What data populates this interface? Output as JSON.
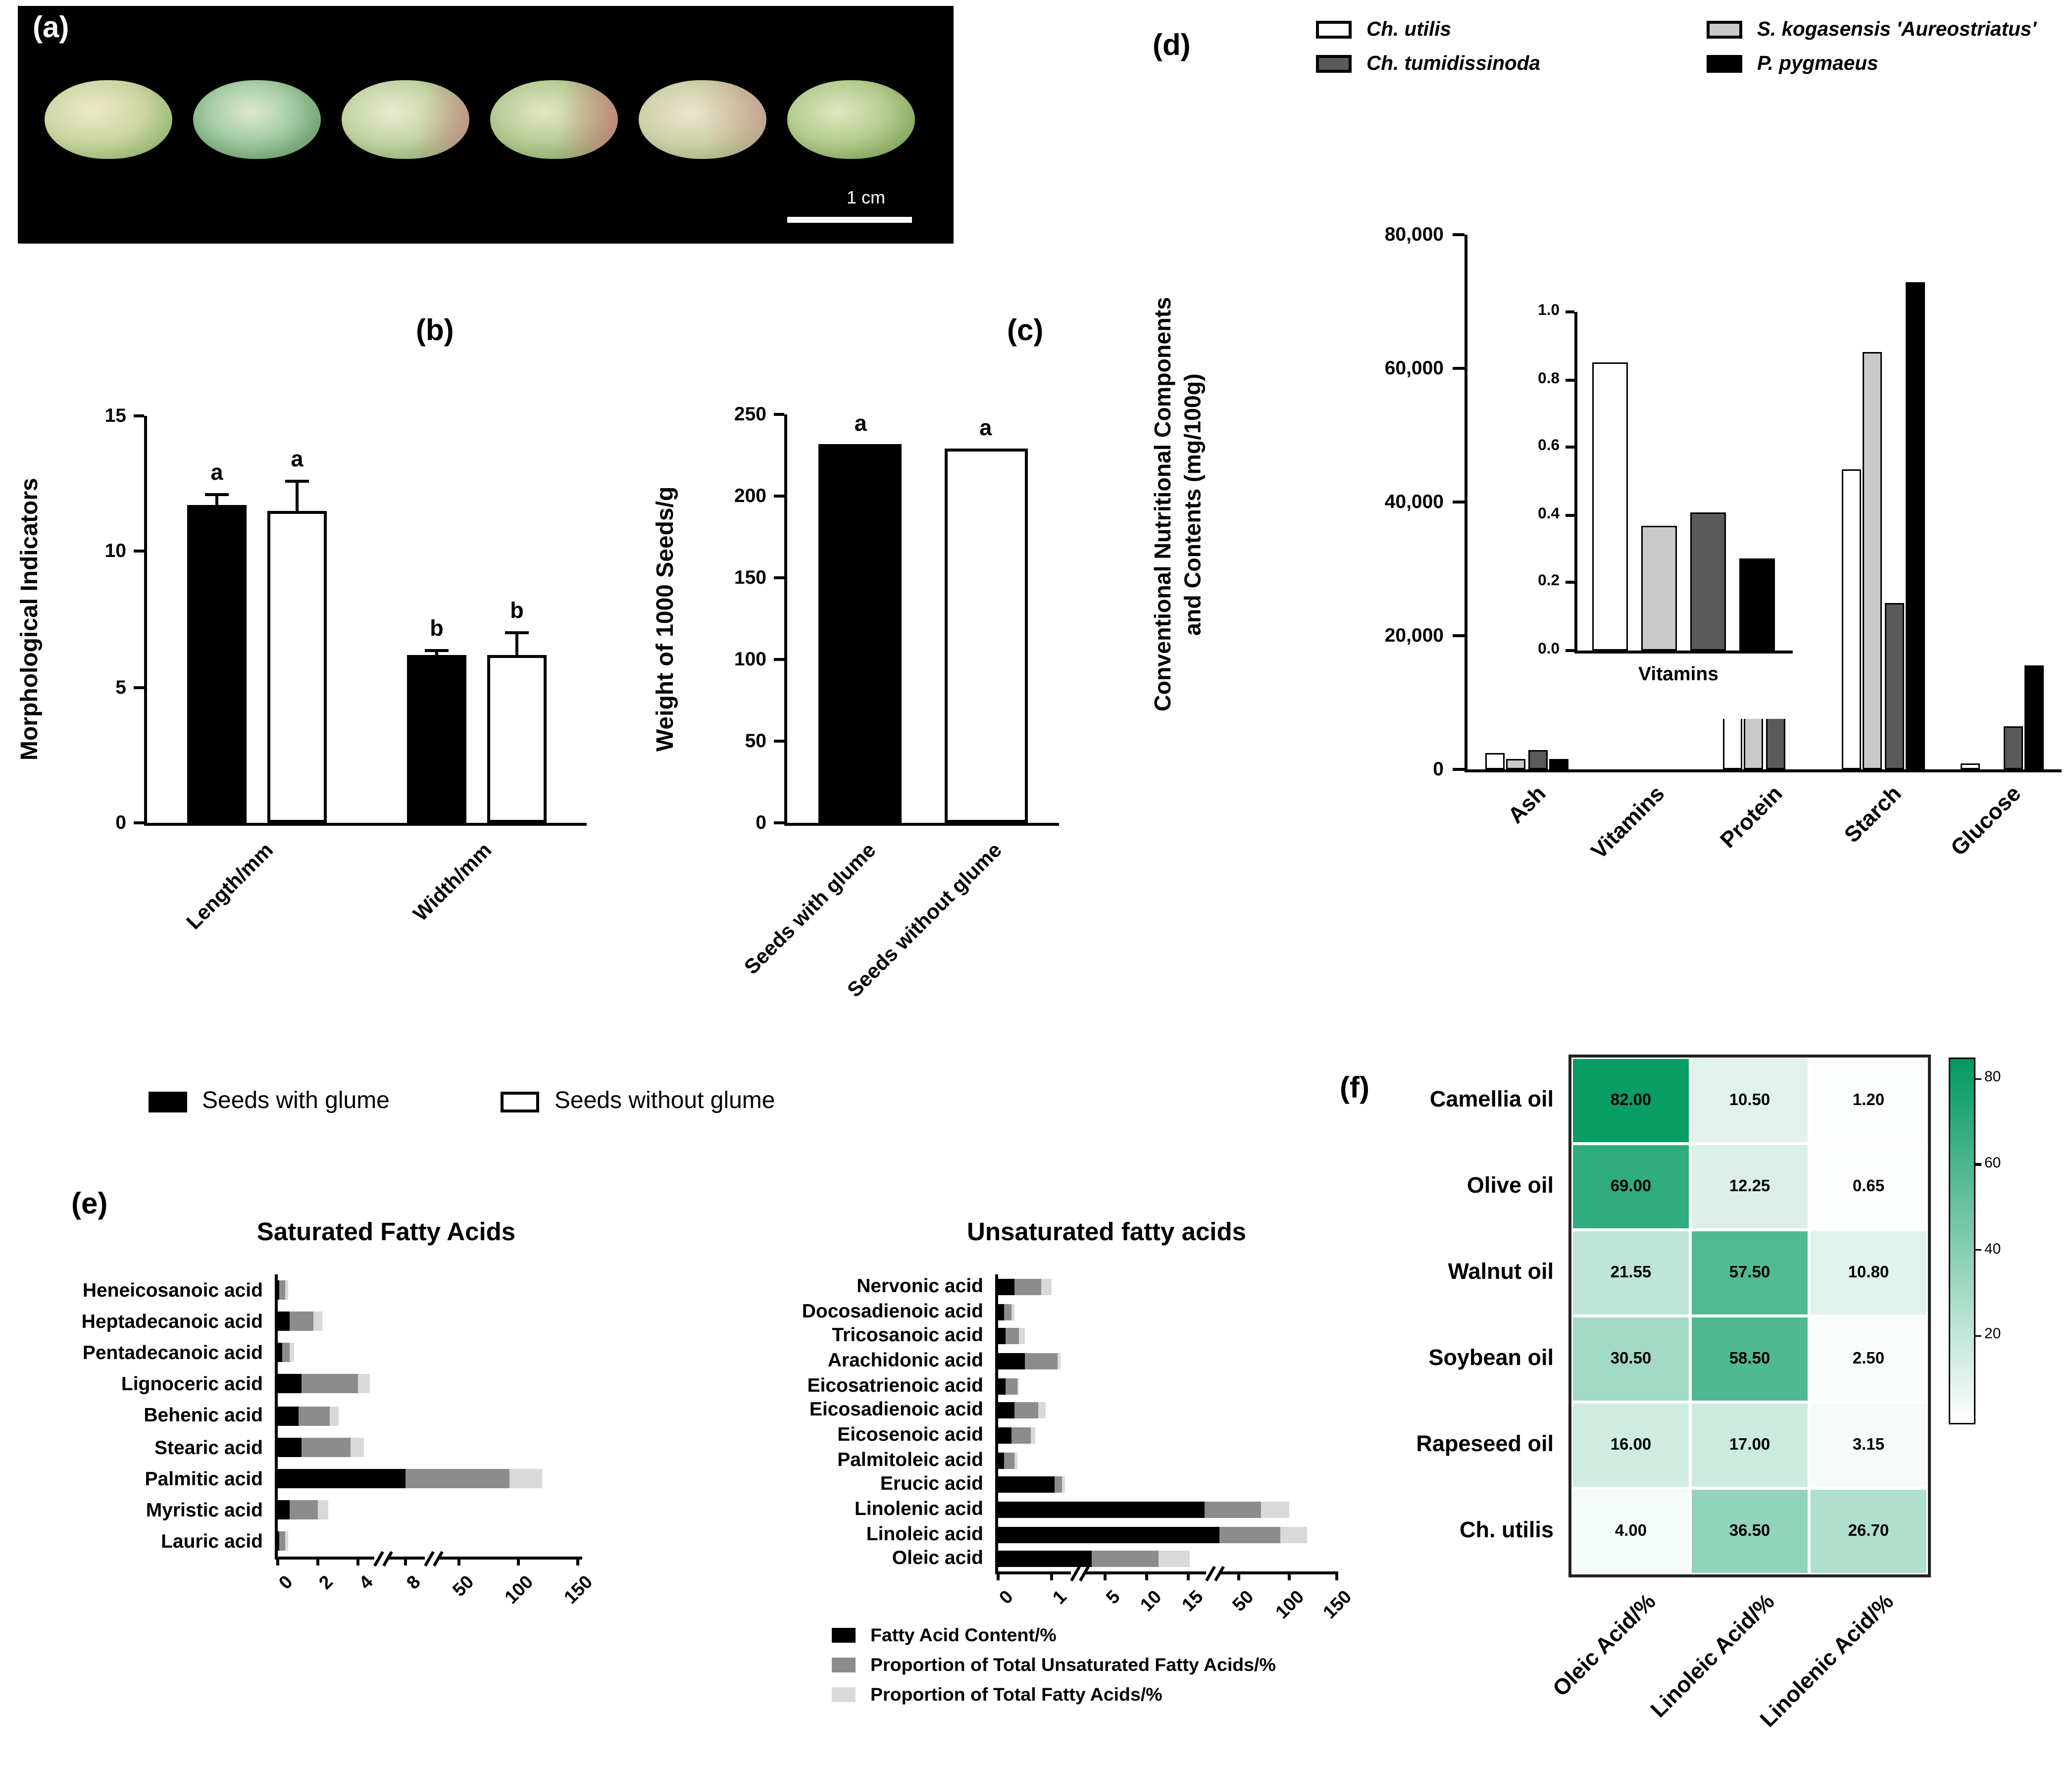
{
  "panels": {
    "a": {
      "label": "(a)",
      "scale_bar": "1 cm",
      "seed_count": 6
    },
    "b": {
      "label": "(b)"
    },
    "c": {
      "label": "(c)"
    },
    "d": {
      "label": "(d)"
    },
    "e": {
      "label": "(e)"
    },
    "f": {
      "label": "(f)"
    }
  },
  "legend_bc": [
    {
      "label": "Seeds with glume",
      "color": "#000000"
    },
    {
      "label": "Seeds without glume",
      "color": "#ffffff"
    }
  ],
  "legend_d": [
    {
      "label": "Ch. utilis",
      "color": "#ffffff"
    },
    {
      "label": "S. kogasensis 'Aureostriatus'",
      "color": "#c9c9c9"
    },
    {
      "label": "Ch. tumidissinoda",
      "color": "#5a5a5a"
    },
    {
      "label": "P. pygmaeus",
      "color": "#000000"
    }
  ],
  "legend_e": [
    {
      "label": "Fatty Acid Content/%",
      "color": "#000000"
    },
    {
      "label": "Proportion of Total Unsaturated Fatty Acids/%",
      "color": "#8c8c8c"
    },
    {
      "label": "Proportion of Total Fatty Acids/%",
      "color": "#d9d9d9"
    }
  ],
  "chart_data": [
    {
      "id": "b",
      "type": "bar",
      "panel": "(b)",
      "ylabel": "Morphological Indicators",
      "ylim": [
        0,
        15
      ],
      "yticks": [
        0,
        5,
        10,
        15
      ],
      "categories": [
        "Length/mm",
        "Width/mm"
      ],
      "series": [
        {
          "name": "Seeds with glume",
          "color": "#000000",
          "values": [
            11.7,
            6.2
          ],
          "errors": [
            0.4,
            0.15
          ],
          "letters": [
            "a",
            "b"
          ]
        },
        {
          "name": "Seeds without glume",
          "color": "#ffffff",
          "values": [
            11.5,
            6.2
          ],
          "errors": [
            1.1,
            0.8
          ],
          "letters": [
            "a",
            "b"
          ]
        }
      ]
    },
    {
      "id": "c",
      "type": "bar",
      "panel": "(c)",
      "ylabel": "Weight of 1000 Seeds/g",
      "ylim": [
        0,
        250
      ],
      "yticks": [
        0,
        50,
        100,
        150,
        200,
        250
      ],
      "categories": [
        "Seeds with glume",
        "Seeds without glume"
      ],
      "values": [
        232,
        229
      ],
      "colors": [
        "#000000",
        "#ffffff"
      ],
      "letters": [
        "a",
        "a"
      ]
    },
    {
      "id": "d",
      "type": "grouped-bar",
      "panel": "(d)",
      "ylabel": [
        "Conventional Nutritional Components",
        "and Contents (mg/100g)"
      ],
      "ylim": [
        0,
        80000
      ],
      "yticks": [
        [
          0,
          "0"
        ],
        [
          20000,
          "20,000"
        ],
        [
          40000,
          "40,000"
        ],
        [
          60000,
          "60,000"
        ],
        [
          80000,
          "80,000"
        ]
      ],
      "categories": [
        "Ash",
        "Vitamins",
        "Protein",
        "Starch",
        "Glucose"
      ],
      "series": [
        {
          "name": "Ch. utilis",
          "color": "#ffffff",
          "values": [
            2500,
            1,
            12500,
            45000,
            800
          ]
        },
        {
          "name": "S. kogasensis 'Aureostriatus'",
          "color": "#c9c9c9",
          "values": [
            1500,
            0,
            11800,
            62500,
            0
          ]
        },
        {
          "name": "Ch. tumidissinoda",
          "color": "#5a5a5a",
          "values": [
            3000,
            0,
            11000,
            25000,
            6500
          ]
        },
        {
          "name": "P. pygmaeus",
          "color": "#000000",
          "values": [
            1500,
            0,
            0,
            73000,
            15500
          ]
        }
      ],
      "inset": {
        "xlabel": "Vitamins",
        "ylim": [
          0,
          1.0
        ],
        "yticks": [
          [
            0,
            "0.0"
          ],
          [
            0.2,
            "0.2"
          ],
          [
            0.4,
            "0.4"
          ],
          [
            0.6,
            "0.6"
          ],
          [
            0.8,
            "0.8"
          ],
          [
            1.0,
            "1.0"
          ]
        ],
        "values": [
          0.85,
          0.37,
          0.41,
          0.27
        ]
      }
    },
    {
      "id": "e_saturated",
      "type": "stacked-hbar",
      "title": "Saturated Fatty Acids",
      "categories": [
        "Heneicosanoic acid",
        "Heptadecanoic acid",
        "Pentadecanoic acid",
        "Lignoceric acid",
        "Behenic acid",
        "Stearic acid",
        "Palmitic acid",
        "Myristic acid",
        "Lauric acid"
      ],
      "series": [
        {
          "name": "Fatty Acid Content/%",
          "color": "#000000",
          "values": [
            0.1,
            0.6,
            0.2,
            1.2,
            1.0,
            1.2,
            8.0,
            0.6,
            0.1
          ]
        },
        {
          "name": "Proportion of Total Unsaturated Fatty Acids/%",
          "color": "#8c8c8c",
          "values": [
            0.25,
            1.2,
            0.4,
            2.8,
            1.6,
            2.4,
            85.0,
            1.4,
            0.25
          ]
        },
        {
          "name": "Proportion of Total Fatty Acids/%",
          "color": "#d9d9d9",
          "values": [
            0.15,
            0.45,
            0.2,
            1.0,
            0.45,
            0.9,
            27.0,
            0.5,
            0.15
          ]
        }
      ],
      "xticks": [
        0,
        2,
        4,
        8,
        50,
        100,
        150
      ],
      "axis_breaks": true
    },
    {
      "id": "e_unsaturated",
      "type": "stacked-hbar",
      "title": "Unsaturated fatty acids",
      "categories": [
        "Nervonic acid",
        "Docosadienoic acid",
        "Tricosanoic acid",
        "Arachidonic acid",
        "Eicosatrienoic acid",
        "Eicosadienoic acid",
        "Eicosenoic acid",
        "Palmitoleic acid",
        "Erucic acid",
        "Linolenic acid",
        "Linoleic acid",
        "Oleic acid"
      ],
      "series": [
        {
          "name": "Fatty Acid Content/%",
          "color": "#000000",
          "values": [
            0.3,
            0.1,
            0.15,
            0.5,
            0.15,
            0.3,
            0.25,
            0.12,
            1.2,
            26.7,
            36.5,
            4.0
          ]
        },
        {
          "name": "Proportion of Total Unsaturated Fatty Acids/%",
          "color": "#8c8c8c",
          "values": [
            0.5,
            0.15,
            0.25,
            0.9,
            0.2,
            0.45,
            0.35,
            0.18,
            0.6,
            45.0,
            55.0,
            7.5
          ]
        },
        {
          "name": "Proportion of Total Fatty Acids/%",
          "color": "#d9d9d9",
          "values": [
            0.2,
            0.05,
            0.1,
            0.3,
            0.05,
            0.15,
            0.1,
            0.05,
            0.2,
            28.0,
            28.0,
            4.5
          ]
        }
      ],
      "xticks": [
        0,
        1,
        5,
        10,
        15,
        50,
        100,
        150
      ],
      "axis_breaks": true
    },
    {
      "id": "f",
      "type": "heatmap",
      "rows": [
        "Camellia oil",
        "Olive oil",
        "Walnut oil",
        "Soybean oil",
        "Rapeseed oil",
        "Ch. utilis"
      ],
      "cols": [
        "Oleic Acid/%",
        "Linoleic Acid/%",
        "Linolenic Acid/%"
      ],
      "values": [
        [
          82.0,
          10.5,
          1.2
        ],
        [
          69.0,
          12.25,
          0.65
        ],
        [
          21.55,
          57.5,
          10.8
        ],
        [
          30.5,
          58.5,
          2.5
        ],
        [
          16.0,
          17.0,
          3.15
        ],
        [
          4.0,
          36.5,
          26.7
        ]
      ],
      "colorbar_ticks": [
        80,
        60,
        40,
        20
      ],
      "color_low": "#ffffff",
      "color_high": "#009960",
      "vmax": 85
    }
  ]
}
